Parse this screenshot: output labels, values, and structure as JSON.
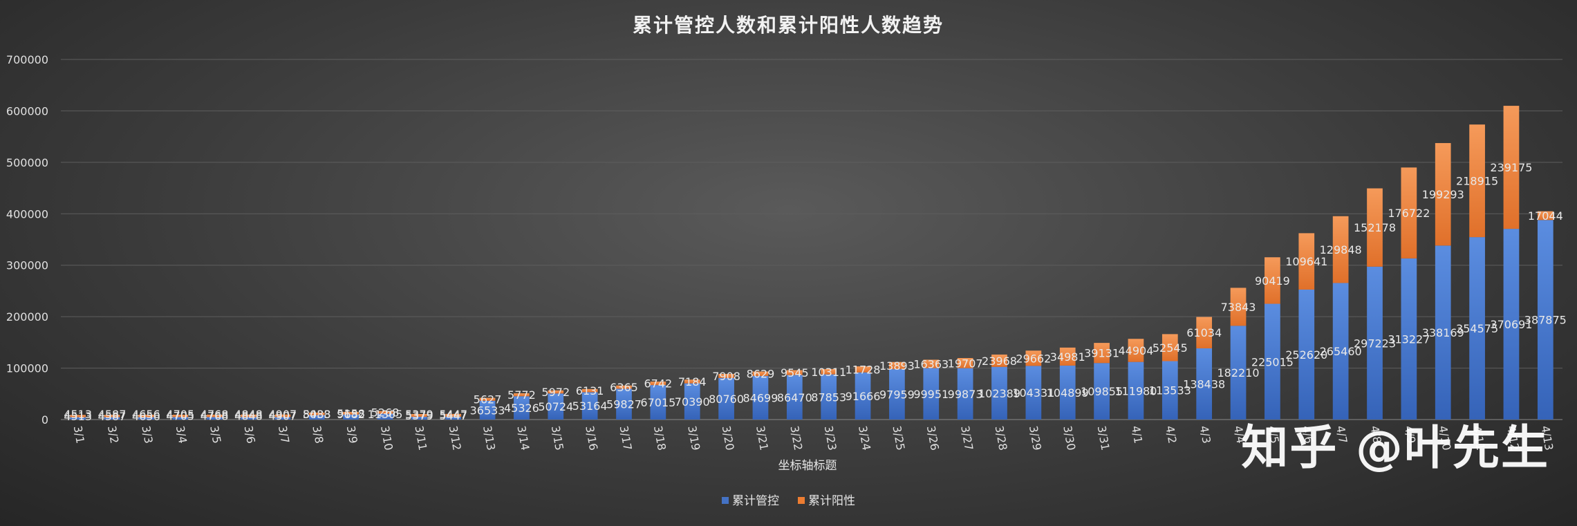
{
  "chart_data": {
    "type": "bar",
    "stacked": true,
    "title": "累计管控人数和累计阳性人数趋势",
    "xlabel": "坐标轴标题",
    "ylabel": "",
    "ylim": [
      0,
      700000
    ],
    "yticks": [
      0,
      100000,
      200000,
      300000,
      400000,
      500000,
      600000,
      700000
    ],
    "grid": true,
    "legend_position": "bottom",
    "categories": [
      "3/1",
      "3/2",
      "3/3",
      "3/4",
      "3/5",
      "3/6",
      "3/7",
      "3/8",
      "3/9",
      "3/10",
      "3/11",
      "3/12",
      "3/13",
      "3/14",
      "3/15",
      "3/16",
      "3/17",
      "3/18",
      "3/19",
      "3/20",
      "3/21",
      "3/22",
      "3/23",
      "3/24",
      "3/25",
      "3/26",
      "3/27",
      "3/28",
      "3/29",
      "3/30",
      "3/31",
      "4/1",
      "4/2",
      "4/3",
      "4/4",
      "4/5",
      "4/6",
      "4/7",
      "4/8",
      "4/9",
      "4/10",
      "4/11",
      "4/12",
      "4/13"
    ],
    "series": [
      {
        "name": "累计管控",
        "color": "#4472C4",
        "values": [
          4513,
          4587,
          4656,
          4705,
          4768,
          4848,
          4907,
          8488,
          9682,
          11305,
          5379,
          5447,
          36533,
          45326,
          50724,
          53164,
          59827,
          67015,
          70390,
          80760,
          84699,
          86470,
          87853,
          91666,
          97959,
          99951,
          99873,
          102389,
          104331,
          104899,
          109855,
          111980,
          113533,
          138438,
          182210,
          225015,
          252620,
          265460,
          297223,
          313227,
          338169,
          354575,
          370691,
          387875
        ]
      },
      {
        "name": "累计阳性",
        "color": "#ED7D31",
        "values": [
          4513,
          4587,
          4656,
          4705,
          4768,
          4848,
          4907,
          5033,
          5158,
          5268,
          5379,
          5447,
          5627,
          5772,
          5972,
          6131,
          6365,
          6742,
          7184,
          7908,
          8629,
          9545,
          10311,
          11728,
          13893,
          16363,
          19707,
          23968,
          29662,
          34981,
          39131,
          44904,
          52545,
          61034,
          73843,
          90419,
          109641,
          129848,
          152178,
          176722,
          199293,
          218915,
          239175,
          17044
        ]
      }
    ]
  },
  "watermark": "知乎 @叶先生"
}
